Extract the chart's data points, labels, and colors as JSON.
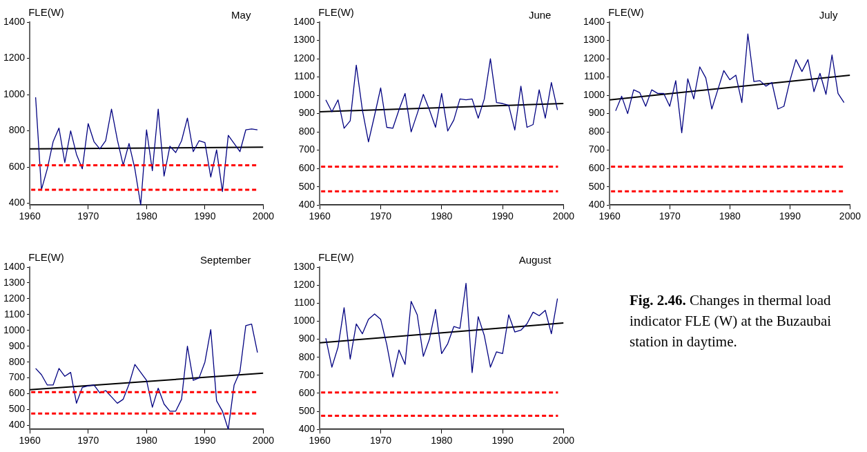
{
  "chart_data": [
    {
      "type": "line",
      "title": "May",
      "ylabel": "FLE(W)",
      "xlim": [
        1960,
        2000
      ],
      "xticks": [
        1960,
        1970,
        1980,
        1990,
        2000
      ],
      "ylim": [
        390,
        1400
      ],
      "yticks": [
        400,
        600,
        800,
        1000,
        1200,
        1400
      ],
      "grid": false,
      "legend": false,
      "marker": "none",
      "series": [
        {
          "color": "#000080",
          "x": [
            1961,
            1962,
            1963,
            1964,
            1965,
            1966,
            1967,
            1968,
            1969,
            1970,
            1971,
            1972,
            1973,
            1974,
            1975,
            1976,
            1977,
            1978,
            1979,
            1980,
            1981,
            1982,
            1983,
            1984,
            1985,
            1986,
            1987,
            1988,
            1989,
            1990,
            1991,
            1992,
            1993,
            1994,
            1995,
            1996,
            1997,
            1998,
            1999
          ],
          "values": [
            985,
            475,
            590,
            740,
            815,
            625,
            800,
            670,
            590,
            840,
            740,
            700,
            745,
            920,
            750,
            610,
            730,
            590,
            390,
            805,
            580,
            920,
            550,
            715,
            680,
            745,
            870,
            685,
            745,
            735,
            545,
            695,
            465,
            775,
            730,
            685,
            805,
            810,
            805
          ]
        },
        {
          "type": "line",
          "color": "#000000",
          "x": [
            1960,
            2000
          ],
          "values": [
            700,
            710
          ]
        }
      ],
      "ref_lines": [
        {
          "axis": "y",
          "value": 610,
          "color": "#ff0000",
          "line_style": "dashed"
        },
        {
          "axis": "y",
          "value": 475,
          "color": "#ff0000",
          "line_style": "dashed"
        }
      ]
    },
    {
      "type": "line",
      "title": "June",
      "ylabel": "FLE(W)",
      "xlim": [
        1960,
        2000
      ],
      "xticks": [
        1960,
        1970,
        1980,
        1990,
        2000
      ],
      "ylim": [
        400,
        1400
      ],
      "yticks": [
        400,
        500,
        600,
        700,
        800,
        900,
        1000,
        1100,
        1200,
        1300,
        1400
      ],
      "grid": false,
      "legend": false,
      "marker": "none",
      "series": [
        {
          "color": "#000080",
          "x": [
            1961,
            1962,
            1963,
            1964,
            1965,
            1966,
            1967,
            1968,
            1969,
            1970,
            1971,
            1972,
            1973,
            1974,
            1975,
            1976,
            1977,
            1978,
            1979,
            1980,
            1981,
            1982,
            1983,
            1984,
            1985,
            1986,
            1987,
            1988,
            1989,
            1990,
            1991,
            1992,
            1993,
            1994,
            1995,
            1996,
            1997,
            1998,
            1999
          ],
          "values": [
            975,
            910,
            975,
            820,
            860,
            1165,
            920,
            745,
            890,
            1040,
            825,
            820,
            920,
            1010,
            800,
            900,
            1005,
            920,
            825,
            1010,
            805,
            865,
            980,
            975,
            980,
            875,
            980,
            1200,
            960,
            955,
            945,
            810,
            1050,
            825,
            840,
            1030,
            875,
            1070,
            920
          ]
        },
        {
          "type": "line",
          "color": "#000000",
          "x": [
            1960,
            2000
          ],
          "values": [
            910,
            955
          ]
        }
      ],
      "ref_lines": [
        {
          "axis": "y",
          "value": 610,
          "color": "#ff0000",
          "line_style": "dashed"
        },
        {
          "axis": "y",
          "value": 475,
          "color": "#ff0000",
          "line_style": "dashed"
        }
      ]
    },
    {
      "type": "line",
      "title": "July",
      "ylabel": "FLE(W)",
      "xlim": [
        1960,
        2000
      ],
      "xticks": [
        1960,
        1970,
        1980,
        1990,
        2000
      ],
      "ylim": [
        400,
        1400
      ],
      "yticks": [
        400,
        500,
        600,
        700,
        800,
        900,
        1000,
        1100,
        1200,
        1300,
        1400
      ],
      "grid": false,
      "legend": false,
      "marker": "none",
      "series": [
        {
          "color": "#000080",
          "x": [
            1961,
            1962,
            1963,
            1964,
            1965,
            1966,
            1967,
            1968,
            1969,
            1970,
            1971,
            1972,
            1973,
            1974,
            1975,
            1976,
            1977,
            1978,
            1979,
            1980,
            1981,
            1982,
            1983,
            1984,
            1985,
            1986,
            1987,
            1988,
            1989,
            1990,
            1991,
            1992,
            1993,
            1994,
            1995,
            1996,
            1997,
            1998,
            1999
          ],
          "values": [
            915,
            995,
            900,
            1030,
            1015,
            940,
            1030,
            1010,
            1010,
            940,
            1080,
            795,
            1090,
            980,
            1155,
            1095,
            925,
            1030,
            1135,
            1085,
            1110,
            960,
            1335,
            1075,
            1080,
            1050,
            1070,
            925,
            940,
            1080,
            1195,
            1130,
            1195,
            1020,
            1120,
            1005,
            1220,
            1010,
            960
          ]
        },
        {
          "type": "line",
          "color": "#000000",
          "x": [
            1960,
            2000
          ],
          "values": [
            975,
            1110
          ]
        }
      ],
      "ref_lines": [
        {
          "axis": "y",
          "value": 610,
          "color": "#ff0000",
          "line_style": "dashed"
        },
        {
          "axis": "y",
          "value": 475,
          "color": "#ff0000",
          "line_style": "dashed"
        }
      ]
    },
    {
      "type": "line",
      "title": "September",
      "ylabel": "FLE(W)",
      "xlim": [
        1960,
        2000
      ],
      "xticks": [
        1960,
        1970,
        1980,
        1990,
        2000
      ],
      "ylim": [
        375,
        1400
      ],
      "yticks": [
        400,
        500,
        600,
        700,
        800,
        900,
        1000,
        1100,
        1200,
        1300,
        1400
      ],
      "grid": false,
      "legend": false,
      "marker": "none",
      "series": [
        {
          "color": "#000080",
          "x": [
            1961,
            1962,
            1963,
            1964,
            1965,
            1966,
            1967,
            1968,
            1969,
            1970,
            1971,
            1972,
            1973,
            1974,
            1975,
            1976,
            1977,
            1978,
            1979,
            1980,
            1981,
            1982,
            1983,
            1984,
            1985,
            1986,
            1987,
            1988,
            1989,
            1990,
            1991,
            1992,
            1993,
            1994,
            1995,
            1996,
            1997,
            1998,
            1999
          ],
          "values": [
            760,
            720,
            655,
            655,
            760,
            710,
            735,
            540,
            640,
            650,
            655,
            605,
            620,
            580,
            540,
            565,
            660,
            785,
            735,
            685,
            515,
            635,
            535,
            490,
            490,
            565,
            900,
            685,
            700,
            800,
            1005,
            555,
            490,
            375,
            655,
            740,
            1030,
            1040,
            860
          ]
        },
        {
          "type": "line",
          "color": "#000000",
          "x": [
            1960,
            2000
          ],
          "values": [
            625,
            730
          ]
        }
      ],
      "ref_lines": [
        {
          "axis": "y",
          "value": 610,
          "color": "#ff0000",
          "line_style": "dashed"
        },
        {
          "axis": "y",
          "value": 475,
          "color": "#ff0000",
          "line_style": "dashed"
        }
      ]
    },
    {
      "type": "line",
      "title": "August",
      "ylabel": "FLE(W)",
      "xlim": [
        1960,
        2000
      ],
      "xticks": [
        1960,
        1970,
        1980,
        1990,
        2000
      ],
      "ylim": [
        400,
        1300
      ],
      "yticks": [
        400,
        500,
        600,
        700,
        800,
        900,
        1000,
        1100,
        1200,
        1300
      ],
      "grid": false,
      "legend": false,
      "marker": "none",
      "series": [
        {
          "color": "#000080",
          "x": [
            1961,
            1962,
            1963,
            1964,
            1965,
            1966,
            1967,
            1968,
            1969,
            1970,
            1971,
            1972,
            1973,
            1974,
            1975,
            1976,
            1977,
            1978,
            1979,
            1980,
            1981,
            1982,
            1983,
            1984,
            1985,
            1986,
            1987,
            1988,
            1989,
            1990,
            1991,
            1992,
            1993,
            1994,
            1995,
            1996,
            1997,
            1998,
            1999
          ],
          "values": [
            905,
            745,
            855,
            1075,
            790,
            985,
            930,
            1010,
            1040,
            1010,
            870,
            690,
            840,
            760,
            1110,
            1035,
            805,
            900,
            1065,
            820,
            875,
            970,
            960,
            1210,
            715,
            1025,
            920,
            745,
            830,
            820,
            1035,
            940,
            950,
            985,
            1050,
            1030,
            1060,
            930,
            1125
          ]
        },
        {
          "type": "line",
          "color": "#000000",
          "x": [
            1960,
            2000
          ],
          "values": [
            880,
            990
          ]
        }
      ],
      "ref_lines": [
        {
          "axis": "y",
          "value": 605,
          "color": "#ff0000",
          "line_style": "dashed"
        },
        {
          "axis": "y",
          "value": 475,
          "color": "#ff0000",
          "line_style": "dashed"
        }
      ]
    },
    {
      "type": "other",
      "title": "Fig. 2.46.",
      "subtitle": "Changes in thermal load indicator FLE (W) at the Buzaubai station in daytime."
    }
  ]
}
